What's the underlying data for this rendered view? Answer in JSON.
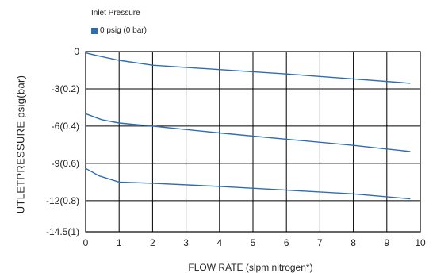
{
  "chart_data": {
    "type": "line",
    "legend_title": "Inlet Pressure",
    "legend_placement": "top-left",
    "xlabel": "FLOW RATE (slpm nitrogen*)",
    "ylabel": "UTLETPRESSURE psig(bar)",
    "xlim": [
      0,
      10
    ],
    "ylim": [
      -14.5,
      0
    ],
    "grid": true,
    "x_ticks": [
      {
        "value": 0,
        "label": "0"
      },
      {
        "value": 1,
        "label": "1"
      },
      {
        "value": 2,
        "label": "2"
      },
      {
        "value": 3,
        "label": "3"
      },
      {
        "value": 4,
        "label": "4"
      },
      {
        "value": 5,
        "label": "5"
      },
      {
        "value": 6,
        "label": "6"
      },
      {
        "value": 7,
        "label": "7"
      },
      {
        "value": 8,
        "label": "8"
      },
      {
        "value": 9,
        "label": "9"
      },
      {
        "value": 10,
        "label": "10"
      }
    ],
    "y_ticks": [
      {
        "value": 0,
        "label": "0"
      },
      {
        "value": -3,
        "label": "-3(0.2)"
      },
      {
        "value": -6,
        "label": "-6(0.4)"
      },
      {
        "value": -9,
        "label": "-9(0.6)"
      },
      {
        "value": -12,
        "label": "-12(0.8)"
      },
      {
        "value": -14.5,
        "label": "-14.5(1)"
      }
    ],
    "series": [
      {
        "name": "0 psig (0 bar)",
        "color": "#2e6cb5",
        "lines": [
          {
            "x": [
              0,
              0.3,
              1.0,
              2.0,
              4.0,
              6.0,
              8.0,
              9.7
            ],
            "y": [
              -0.1,
              -0.3,
              -0.7,
              -1.1,
              -1.45,
              -1.8,
              -2.2,
              -2.55
            ]
          },
          {
            "x": [
              0,
              0.5,
              1.0,
              2.0,
              4.0,
              6.0,
              8.0,
              9.7
            ],
            "y": [
              -5.0,
              -5.5,
              -5.75,
              -6.0,
              -6.55,
              -7.05,
              -7.55,
              -8.05
            ]
          },
          {
            "x": [
              0,
              0.4,
              1.0,
              2.0,
              4.0,
              6.0,
              8.0,
              9.7
            ],
            "y": [
              -9.4,
              -10.0,
              -10.5,
              -10.6,
              -10.85,
              -11.15,
              -11.45,
              -11.85
            ]
          }
        ]
      }
    ]
  }
}
